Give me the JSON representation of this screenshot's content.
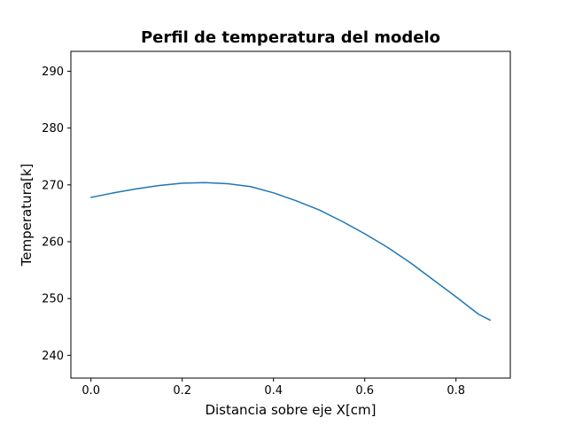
{
  "chart_data": {
    "type": "line",
    "title": "Perfil de temperatura del modelo",
    "xlabel": "Distancia sobre eje X[cm]",
    "ylabel": "Temperatura[k]",
    "xlim": [
      -0.044,
      0.919
    ],
    "ylim": [
      236,
      293.5
    ],
    "grid": false,
    "x_ticks": [
      0.0,
      0.2,
      0.4,
      0.6,
      0.8
    ],
    "x_tick_labels": [
      "0.0",
      "0.2",
      "0.4",
      "0.6",
      "0.8"
    ],
    "y_ticks": [
      240,
      250,
      260,
      270,
      280,
      290
    ],
    "y_tick_labels": [
      "240",
      "250",
      "260",
      "270",
      "280",
      "290"
    ],
    "series": [
      {
        "color": "#1f77b4",
        "x": [
          0.0,
          0.05,
          0.1,
          0.15,
          0.2,
          0.25,
          0.3,
          0.35,
          0.4,
          0.45,
          0.5,
          0.55,
          0.6,
          0.65,
          0.7,
          0.75,
          0.8,
          0.85,
          0.875
        ],
        "y": [
          267.8,
          268.6,
          269.3,
          269.9,
          270.3,
          270.4,
          270.2,
          269.7,
          268.6,
          267.2,
          265.6,
          263.6,
          261.4,
          259.0,
          256.3,
          253.3,
          250.3,
          247.2,
          246.2
        ]
      }
    ]
  }
}
